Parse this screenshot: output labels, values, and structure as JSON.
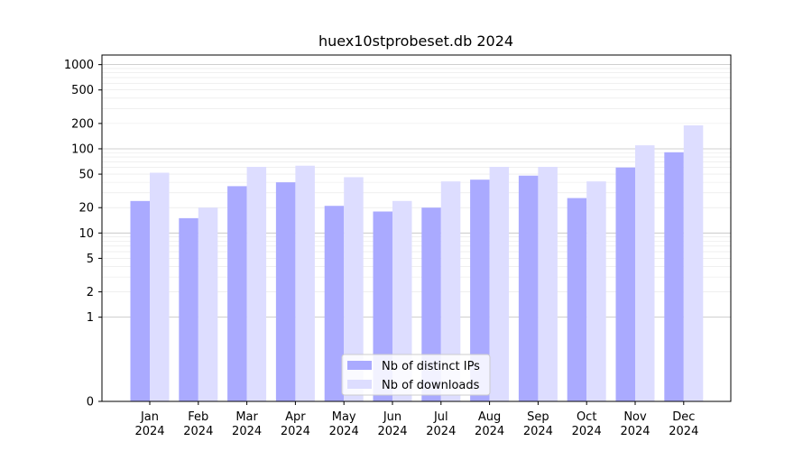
{
  "chart_data": {
    "type": "bar",
    "title": "huex10stprobeset.db 2024",
    "xlabel": "",
    "ylabel": "",
    "yscale": "symlog",
    "ylim": [
      0,
      1300
    ],
    "yticks": [
      0,
      1,
      2,
      5,
      10,
      20,
      50,
      100,
      200,
      500,
      1000
    ],
    "ytick_labels": [
      "0",
      "1",
      "2",
      "5",
      "10",
      "20",
      "50",
      "100",
      "200",
      "500",
      "1000"
    ],
    "categories": [
      "Jan\n2024",
      "Feb\n2024",
      "Mar\n2024",
      "Apr\n2024",
      "May\n2024",
      "Jun\n2024",
      "Jul\n2024",
      "Aug\n2024",
      "Sep\n2024",
      "Oct\n2024",
      "Nov\n2024",
      "Dec\n2024"
    ],
    "series": [
      {
        "name": "Nb of distinct IPs",
        "color": "#aaaaff",
        "values": [
          24,
          15,
          36,
          40,
          21,
          18,
          20,
          43,
          48,
          26,
          60,
          91
        ]
      },
      {
        "name": "Nb of downloads",
        "color": "#ddddff",
        "values": [
          52,
          20,
          61,
          63,
          46,
          24,
          41,
          61,
          61,
          41,
          110,
          190
        ]
      }
    ],
    "legend_position": "lower-center",
    "grid": true
  }
}
